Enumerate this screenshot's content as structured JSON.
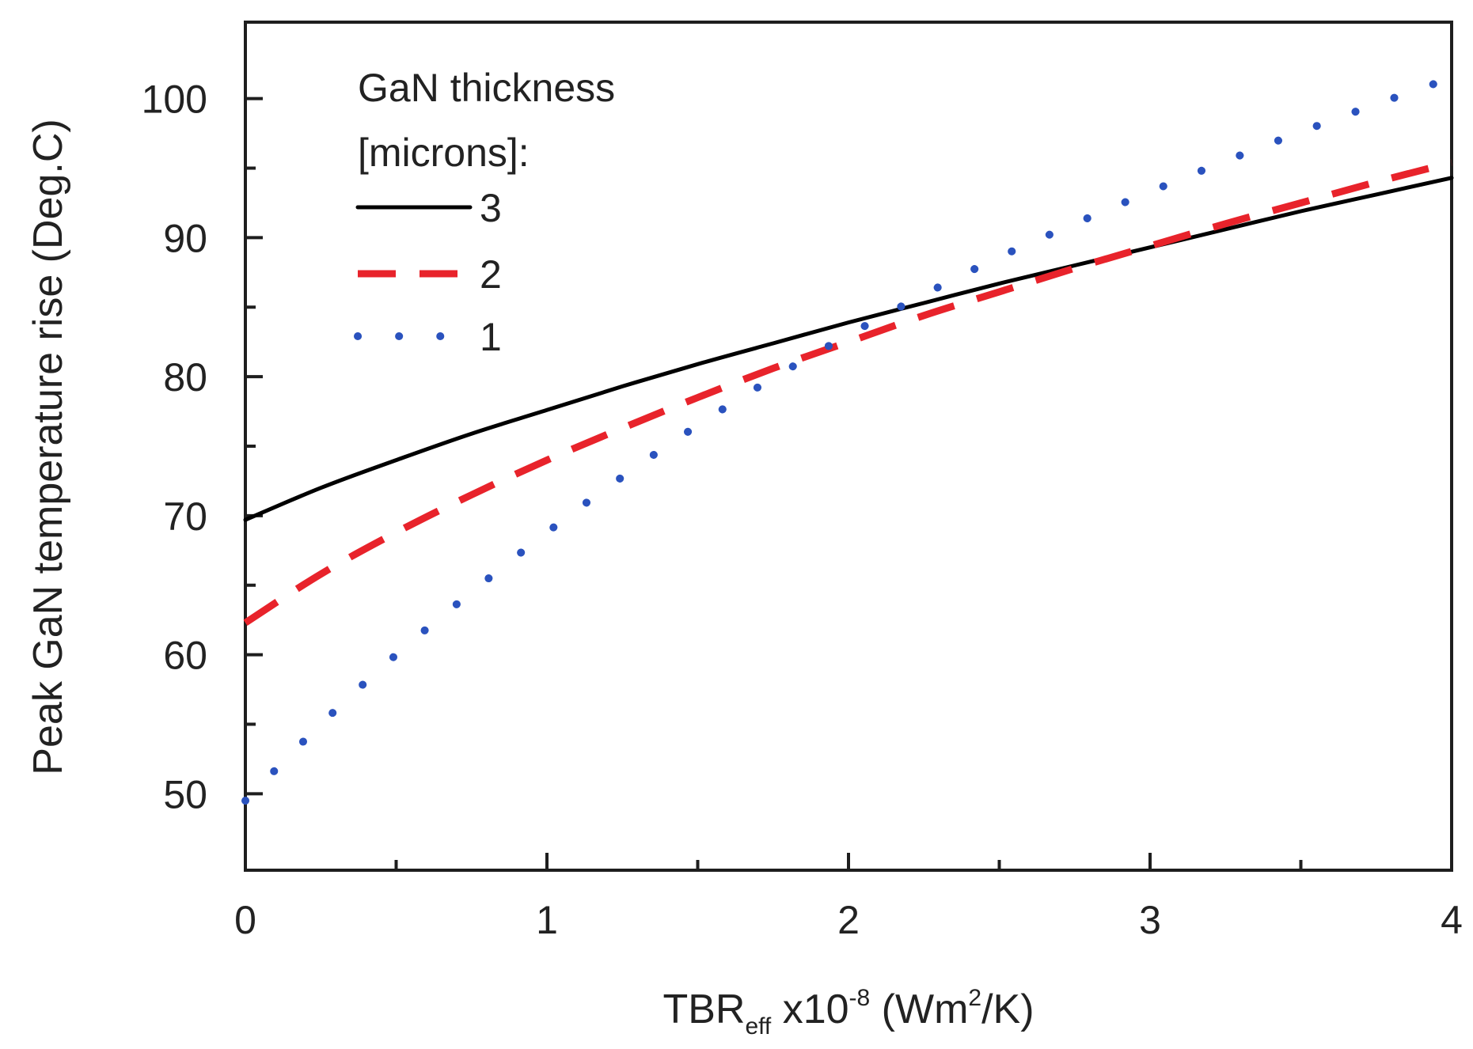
{
  "chart_data": {
    "type": "line",
    "xlabel": {
      "base": "TBR",
      "subscript": "eff",
      "multiplier_prefix": " x10",
      "multiplier_exponent": "-8",
      "unit_prefix": " (Wm",
      "unit_exponent": "2",
      "unit_suffix": "/K)"
    },
    "ylabel": "Peak GaN temperature rise (Deg.C)",
    "xlim": [
      0,
      4
    ],
    "ylim": [
      44.5,
      105.5
    ],
    "x_ticks": [
      0,
      1,
      2,
      3,
      4
    ],
    "x_tick_labels": [
      "0",
      "1",
      "2",
      "3",
      "4"
    ],
    "x_minor_ticks": [
      0.5,
      1.5,
      2.5,
      3.5
    ],
    "y_ticks": [
      50,
      60,
      70,
      80,
      90,
      100
    ],
    "y_tick_labels": [
      "50",
      "60",
      "70",
      "80",
      "90",
      "100"
    ],
    "y_minor_ticks": [
      55,
      65,
      75,
      85,
      95
    ],
    "legend": {
      "title_line1": "GaN thickness",
      "title_line2": "[microns]:",
      "position": "top-left"
    },
    "series": [
      {
        "name": "3",
        "style": "solid",
        "color": "#000000",
        "x": [
          0,
          0.25,
          0.5,
          0.75,
          1.0,
          1.25,
          1.5,
          1.75,
          2.0,
          2.25,
          2.5,
          2.75,
          3.0,
          3.25,
          3.5,
          3.75,
          4.0
        ],
        "y": [
          69.7,
          72.0,
          74.0,
          75.9,
          77.6,
          79.3,
          80.9,
          82.4,
          83.9,
          85.3,
          86.7,
          88.0,
          89.3,
          90.6,
          91.9,
          93.1,
          94.3
        ]
      },
      {
        "name": "2",
        "style": "dashed",
        "color": "#e8232b",
        "x": [
          0,
          0.25,
          0.5,
          0.75,
          1.0,
          1.25,
          1.5,
          1.75,
          2.0,
          2.25,
          2.5,
          2.75,
          3.0,
          3.25,
          3.5,
          3.75,
          4.0
        ],
        "y": [
          62.3,
          65.8,
          68.8,
          71.5,
          74.0,
          76.3,
          78.5,
          80.6,
          82.5,
          84.4,
          86.1,
          87.8,
          89.4,
          91.0,
          92.5,
          94.0,
          95.4
        ]
      },
      {
        "name": "1",
        "style": "dotted",
        "color": "#2a52be",
        "x": [
          0,
          0.25,
          0.5,
          0.75,
          1.0,
          1.25,
          1.5,
          1.75,
          2.0,
          2.25,
          2.5,
          2.75,
          3.0,
          3.25,
          3.5,
          3.75,
          4.0
        ],
        "y": [
          49.5,
          55.0,
          60.0,
          64.5,
          68.8,
          72.8,
          76.5,
          79.9,
          83.0,
          85.9,
          88.6,
          91.0,
          93.3,
          95.5,
          97.6,
          99.6,
          101.5
        ]
      }
    ]
  }
}
